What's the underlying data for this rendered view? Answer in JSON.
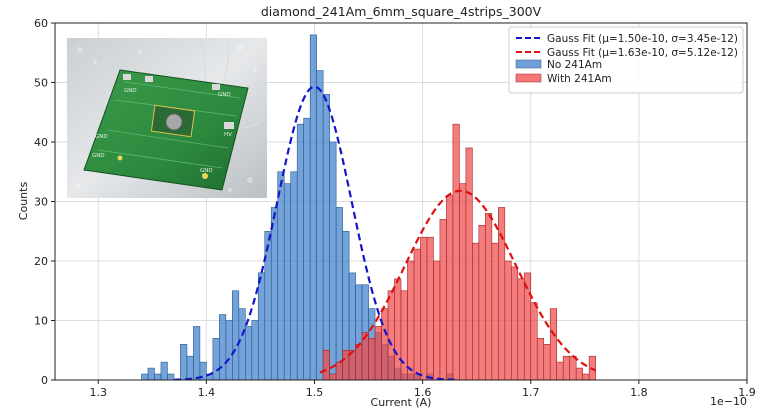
{
  "chart_data": {
    "type": "bar",
    "title": "diamond_241Am_6mm_square_4strips_300V",
    "xlabel": "Current (A)",
    "ylabel": "Counts",
    "x_offset_label": "1e−10",
    "xlim": [
      1.26,
      1.9
    ],
    "ylim": [
      0,
      60
    ],
    "x_ticks": [
      1.3,
      1.4,
      1.5,
      1.6,
      1.7,
      1.8,
      1.9
    ],
    "x_tick_labels": [
      "1.3",
      "1.4",
      "1.5",
      "1.6",
      "1.7",
      "1.8",
      "1.9"
    ],
    "y_ticks": [
      0,
      10,
      20,
      30,
      40,
      50,
      60
    ],
    "y_tick_labels": [
      "0",
      "10",
      "20",
      "30",
      "40",
      "50",
      "60"
    ],
    "grid": true,
    "legend_position": "top-right",
    "series": [
      {
        "name": "No 241Am",
        "kind": "histogram",
        "color": "#3d7fc9",
        "bin_width": 0.006,
        "bin_starts": [
          1.34,
          1.346,
          1.352,
          1.358,
          1.364,
          1.37,
          1.376,
          1.382,
          1.388,
          1.394,
          1.4,
          1.406,
          1.412,
          1.418,
          1.424,
          1.43,
          1.436,
          1.442,
          1.448,
          1.454,
          1.46,
          1.466,
          1.472,
          1.478,
          1.484,
          1.49,
          1.496,
          1.502,
          1.508,
          1.514,
          1.52,
          1.526,
          1.532,
          1.538,
          1.544,
          1.55,
          1.556,
          1.562,
          1.568,
          1.574,
          1.58,
          1.586,
          1.592,
          1.598,
          1.604,
          1.61,
          1.616,
          1.622
        ],
        "counts": [
          1,
          2,
          1,
          3,
          1,
          0,
          6,
          4,
          9,
          3,
          1,
          7,
          11,
          10,
          15,
          12,
          9,
          10,
          18,
          25,
          29,
          35,
          33,
          35,
          43,
          44,
          58,
          52,
          48,
          40,
          29,
          25,
          18,
          16,
          16,
          12,
          8,
          6,
          4,
          2,
          1,
          1,
          1,
          0,
          1,
          0,
          0,
          1
        ]
      },
      {
        "name": "With 241Am",
        "kind": "histogram",
        "color": "#f04a4a",
        "bin_width": 0.006,
        "bin_starts": [
          1.508,
          1.514,
          1.52,
          1.526,
          1.532,
          1.538,
          1.544,
          1.55,
          1.556,
          1.562,
          1.568,
          1.574,
          1.58,
          1.586,
          1.592,
          1.598,
          1.604,
          1.61,
          1.616,
          1.622,
          1.628,
          1.634,
          1.64,
          1.646,
          1.652,
          1.658,
          1.664,
          1.67,
          1.676,
          1.682,
          1.688,
          1.694,
          1.7,
          1.706,
          1.712,
          1.718,
          1.724,
          1.73,
          1.736,
          1.742,
          1.748,
          1.754
        ],
        "counts": [
          5,
          1,
          3,
          5,
          5,
          6,
          8,
          7,
          9,
          12,
          15,
          17,
          15,
          20,
          22,
          24,
          24,
          20,
          27,
          31,
          43,
          33,
          39,
          23,
          26,
          28,
          23,
          29,
          20,
          19,
          17,
          18,
          13,
          7,
          6,
          12,
          3,
          4,
          4,
          2,
          1,
          4
        ]
      },
      {
        "name": "Gauss Fit (μ=1.50e-10, σ=3.45e-12)",
        "kind": "gauss_fit",
        "color": "#1515cc",
        "mu": 1.5,
        "sigma": 0.0345,
        "amplitude": 49.3,
        "x_range": [
          1.37,
          1.63
        ]
      },
      {
        "name": "Gauss Fit (μ=1.63e-10, σ=5.12e-12)",
        "kind": "gauss_fit",
        "color": "#e01010",
        "mu": 1.635,
        "sigma": 0.0512,
        "amplitude": 31.8,
        "x_range": [
          1.505,
          1.76
        ]
      }
    ],
    "legend": [
      {
        "label": "Gauss Fit (μ=1.50e-10, σ=3.45e-12)",
        "color": "#1515cc",
        "style": "dashed-line"
      },
      {
        "label": "Gauss Fit (μ=1.63e-10, σ=5.12e-12)",
        "color": "#e01010",
        "style": "dashed-line"
      },
      {
        "label": "No 241Am",
        "color": "#3d7fc9",
        "style": "patch"
      },
      {
        "label": "With 241Am",
        "color": "#f04a4a",
        "style": "patch"
      }
    ],
    "inset_photo": {
      "pcb_labels": [
        "GND",
        "GND",
        "GND",
        "GND",
        "HV",
        "GND"
      ]
    }
  }
}
